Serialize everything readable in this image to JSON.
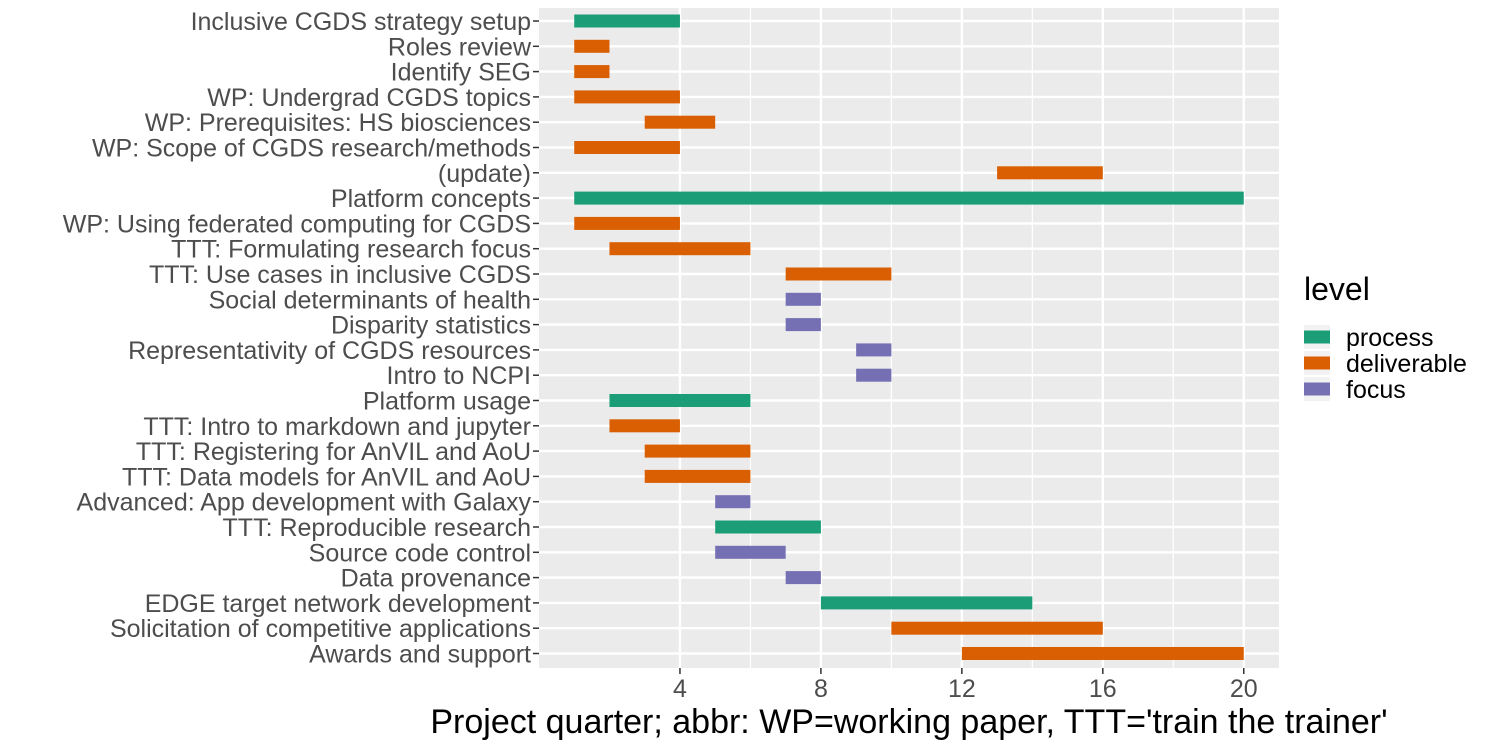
{
  "chart_data": {
    "type": "bar",
    "orientation": "gantt",
    "title": "",
    "xlabel": "Project quarter; abbr: WP=working paper, TTT='train the trainer'",
    "ylabel": "",
    "xlim": [
      0,
      21
    ],
    "x_ticks": [
      4,
      8,
      12,
      16,
      20
    ],
    "grid": true,
    "legend_position": "right",
    "legend_title": "level",
    "levels": [
      {
        "name": "process",
        "color": "#1b9e77"
      },
      {
        "name": "deliverable",
        "color": "#d95f02"
      },
      {
        "name": "focus",
        "color": "#7570b3"
      }
    ],
    "tasks": [
      {
        "label": "Inclusive CGDS strategy setup",
        "start": 1,
        "end": 4,
        "level": "process"
      },
      {
        "label": "Roles review",
        "start": 1,
        "end": 2,
        "level": "deliverable"
      },
      {
        "label": "Identify SEG",
        "start": 1,
        "end": 2,
        "level": "deliverable"
      },
      {
        "label": "WP: Undergrad CGDS topics",
        "start": 1,
        "end": 4,
        "level": "deliverable"
      },
      {
        "label": "WP: Prerequisites: HS biosciences",
        "start": 3,
        "end": 5,
        "level": "deliverable"
      },
      {
        "label": "WP: Scope of CGDS research/methods",
        "start": 1,
        "end": 4,
        "level": "deliverable"
      },
      {
        "label": "(update)",
        "start": 13,
        "end": 16,
        "level": "deliverable"
      },
      {
        "label": "Platform concepts",
        "start": 1,
        "end": 20,
        "level": "process"
      },
      {
        "label": "WP: Using federated computing for CGDS",
        "start": 1,
        "end": 4,
        "level": "deliverable"
      },
      {
        "label": "TTT: Formulating research focus",
        "start": 2,
        "end": 6,
        "level": "deliverable"
      },
      {
        "label": "TTT: Use cases in inclusive CGDS",
        "start": 7,
        "end": 10,
        "level": "deliverable"
      },
      {
        "label": "Social determinants of health",
        "start": 7,
        "end": 8,
        "level": "focus"
      },
      {
        "label": "Disparity statistics",
        "start": 7,
        "end": 8,
        "level": "focus"
      },
      {
        "label": "Representativity of CGDS resources",
        "start": 9,
        "end": 10,
        "level": "focus"
      },
      {
        "label": "Intro to NCPI",
        "start": 9,
        "end": 10,
        "level": "focus"
      },
      {
        "label": "Platform usage",
        "start": 2,
        "end": 6,
        "level": "process"
      },
      {
        "label": "TTT: Intro to markdown and jupyter",
        "start": 2,
        "end": 4,
        "level": "deliverable"
      },
      {
        "label": "TTT: Registering for AnVIL and AoU",
        "start": 3,
        "end": 6,
        "level": "deliverable"
      },
      {
        "label": "TTT: Data models for AnVIL and AoU",
        "start": 3,
        "end": 6,
        "level": "deliverable"
      },
      {
        "label": "Advanced: App development with Galaxy",
        "start": 5,
        "end": 6,
        "level": "focus"
      },
      {
        "label": "TTT: Reproducible research",
        "start": 5,
        "end": 8,
        "level": "process"
      },
      {
        "label": "Source code control",
        "start": 5,
        "end": 7,
        "level": "focus"
      },
      {
        "label": "Data provenance",
        "start": 7,
        "end": 8,
        "level": "focus"
      },
      {
        "label": "EDGE target network development",
        "start": 8,
        "end": 14,
        "level": "process"
      },
      {
        "label": "Solicitation of competitive applications",
        "start": 10,
        "end": 16,
        "level": "deliverable"
      },
      {
        "label": "Awards and support",
        "start": 12,
        "end": 20,
        "level": "deliverable"
      }
    ]
  }
}
